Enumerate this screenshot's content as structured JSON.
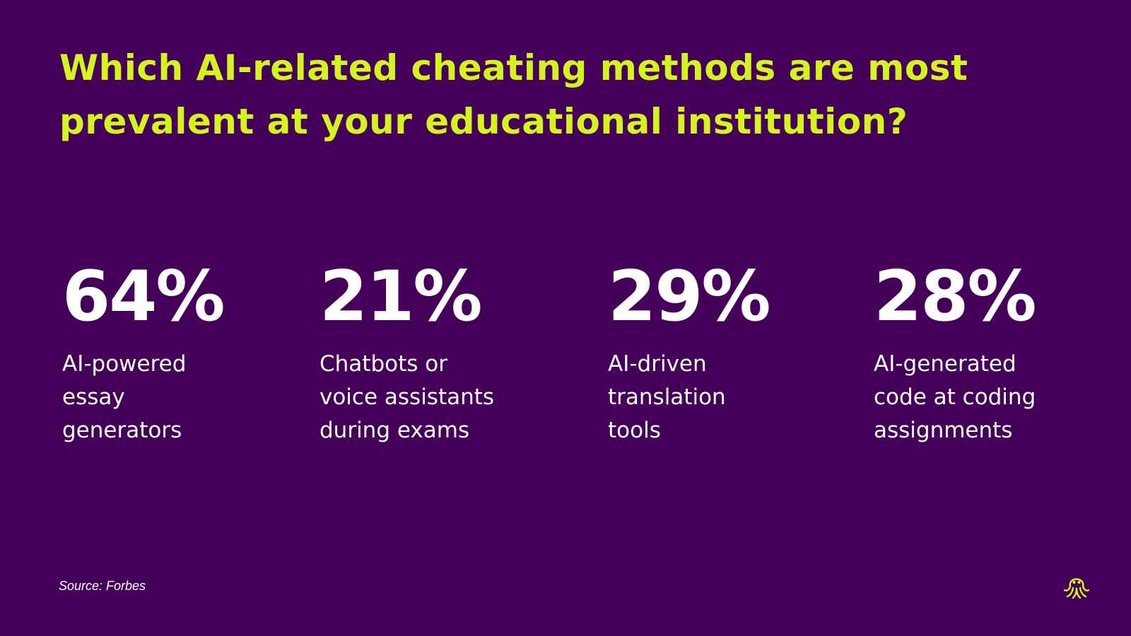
{
  "slide": {
    "title": "Which AI-related cheating methods are most prevalent at your educational institution?",
    "stats": [
      {
        "value": "64%",
        "label": "AI-powered\nessay\ngenerators"
      },
      {
        "value": "21%",
        "label": "Chatbots or\nvoice assistants\nduring exams"
      },
      {
        "value": "29%",
        "label": "AI-driven\ntranslation\ntools"
      },
      {
        "value": "28%",
        "label": "AI-generated\ncode at coding\nassignments"
      }
    ],
    "source": "Source: Forbes",
    "logo_icon": "octopus-logo-icon"
  },
  "colors": {
    "background": "#45005a",
    "accent": "#d4f51c",
    "text": "#ffffff"
  }
}
